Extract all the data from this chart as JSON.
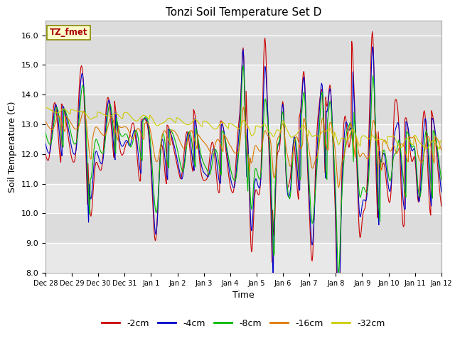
{
  "title": "Tonzi Soil Temperature Set D",
  "xlabel": "Time",
  "ylabel": "Soil Temperature (C)",
  "ylim": [
    8.0,
    16.5
  ],
  "yticks": [
    8.0,
    9.0,
    10.0,
    11.0,
    12.0,
    13.0,
    14.0,
    15.0,
    16.0
  ],
  "bg_color": "#dcdcdc",
  "bg_stripe_color": "#e8e8e8",
  "legend_label": "TZ_fmet",
  "series_colors": {
    "-2cm": "#cc0000",
    "-4cm": "#0000cc",
    "-8cm": "#00bb00",
    "-16cm": "#dd7700",
    "-32cm": "#cccc00"
  },
  "xtick_labels": [
    "Dec 28",
    "Dec 29",
    "Dec 30",
    "Dec 31",
    "Jan 1",
    "Jan 2",
    "Jan 3",
    "Jan 4",
    "Jan 5",
    "Jan 6",
    "Jan 7",
    "Jan 8",
    "Jan 9",
    "Jan 10",
    "Jan 11",
    "Jan 12"
  ],
  "num_points": 672,
  "time_days": 15
}
